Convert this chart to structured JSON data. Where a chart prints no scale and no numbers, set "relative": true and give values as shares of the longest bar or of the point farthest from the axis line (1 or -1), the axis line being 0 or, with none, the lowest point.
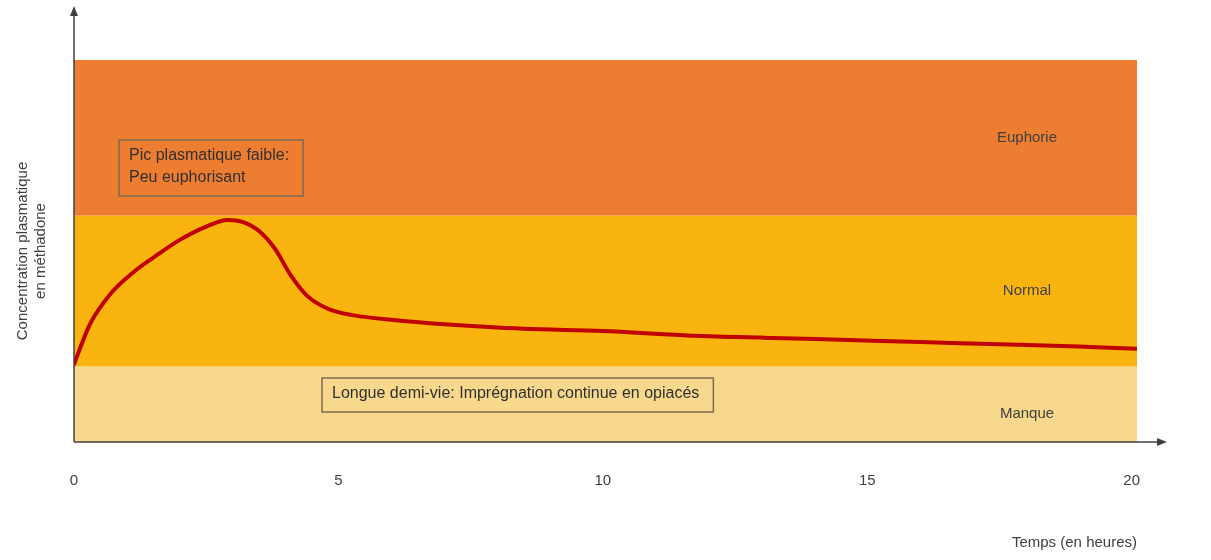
{
  "chart_data": {
    "type": "line",
    "relative": true,
    "xlabel": "Temps (en heures)",
    "ylabel": "Concentration plasmatique\nen méthadone",
    "xlim": [
      0,
      20.1
    ],
    "xticks": [
      0,
      5,
      10,
      15,
      20
    ],
    "grid": false,
    "legend": false,
    "marker": "none",
    "line_style": "solid",
    "series": [
      {
        "color": "#c00000",
        "x": [
          0,
          0.3,
          0.7,
          1.1,
          1.5,
          2.0,
          2.5,
          2.9,
          3.2,
          3.5,
          3.8,
          4.1,
          4.4,
          4.8,
          5.3,
          6.0,
          7.0,
          8.5,
          10,
          11.6,
          13,
          14.5,
          16,
          17.5,
          19,
          20.1
        ],
        "values": [
          0.35,
          0.53,
          0.67,
          0.76,
          0.83,
          0.91,
          0.97,
          1.0,
          0.99,
          0.95,
          0.87,
          0.75,
          0.66,
          0.6,
          0.57,
          0.55,
          0.53,
          0.51,
          0.5,
          0.48,
          0.47,
          0.46,
          0.45,
          0.44,
          0.43,
          0.42
        ]
      }
    ],
    "bands": [
      {
        "axis": "y",
        "from": 0,
        "to": 0.34,
        "label": "Manque",
        "color": "#f8d88c"
      },
      {
        "axis": "y",
        "from": 0.34,
        "to": 1.02,
        "label": "Normal",
        "color": "#f9b410"
      },
      {
        "axis": "y",
        "from": 1.02,
        "to": 1.72,
        "label": "Euphorie",
        "color": "#ed7d31"
      }
    ],
    "annotations": [
      "Pic plasmatique faible:\nPeu euphorisant",
      "Longue demi-vie: Imprégnation continue en opiacés"
    ]
  }
}
